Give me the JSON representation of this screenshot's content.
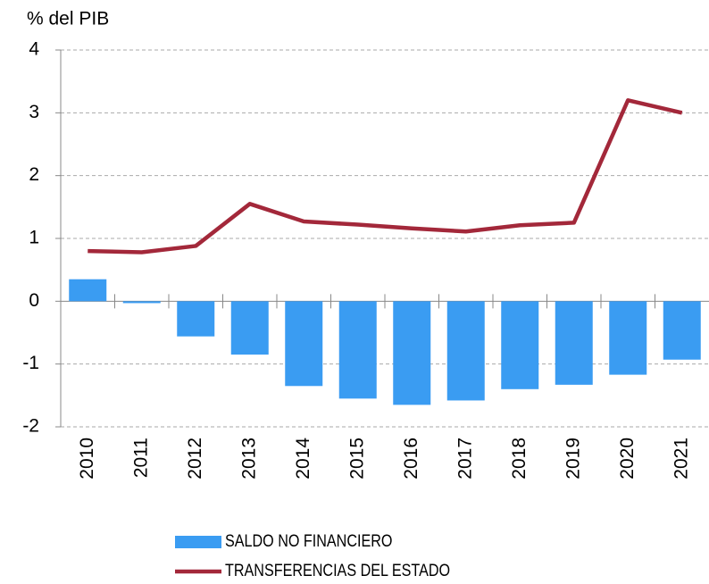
{
  "chart_data": {
    "type": "combo",
    "title": "% del PIB",
    "categories": [
      "2010",
      "2011",
      "2012",
      "2013",
      "2014",
      "2015",
      "2016",
      "2017",
      "2018",
      "2019",
      "2020",
      "2021"
    ],
    "series": [
      {
        "name": "SALDO NO FINANCIERO",
        "type": "bar",
        "color": "#3a9cf2",
        "values": [
          0.35,
          -0.03,
          -0.56,
          -0.85,
          -1.35,
          -1.55,
          -1.65,
          -1.58,
          -1.4,
          -1.33,
          -1.17,
          -0.93
        ]
      },
      {
        "name": "TRANSFERENCIAS DEL ESTADO",
        "type": "line",
        "color": "#a3283a",
        "values": [
          0.8,
          0.78,
          0.88,
          1.55,
          1.27,
          1.22,
          1.16,
          1.11,
          1.21,
          1.25,
          3.2,
          3.0
        ]
      }
    ],
    "ylim": [
      -2,
      4
    ],
    "yticks": [
      -2,
      -1,
      0,
      1,
      2,
      3,
      4
    ],
    "grid": true
  }
}
